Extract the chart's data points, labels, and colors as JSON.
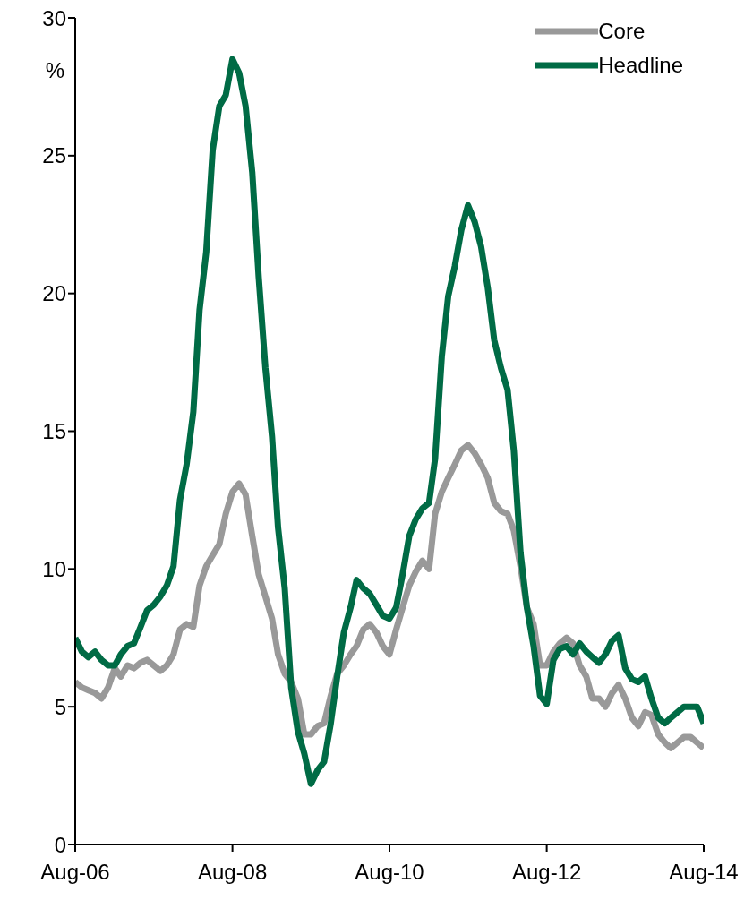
{
  "chart_data": {
    "type": "line",
    "ylabel": "%",
    "x": [
      "2006-08",
      "2006-09",
      "2006-10",
      "2006-11",
      "2006-12",
      "2007-01",
      "2007-02",
      "2007-03",
      "2007-04",
      "2007-05",
      "2007-06",
      "2007-07",
      "2007-08",
      "2007-09",
      "2007-10",
      "2007-11",
      "2007-12",
      "2008-01",
      "2008-02",
      "2008-03",
      "2008-04",
      "2008-05",
      "2008-06",
      "2008-07",
      "2008-08",
      "2008-09",
      "2008-10",
      "2008-11",
      "2008-12",
      "2009-01",
      "2009-02",
      "2009-03",
      "2009-04",
      "2009-05",
      "2009-06",
      "2009-07",
      "2009-08",
      "2009-09",
      "2009-10",
      "2009-11",
      "2009-12",
      "2010-01",
      "2010-02",
      "2010-03",
      "2010-04",
      "2010-05",
      "2010-06",
      "2010-07",
      "2010-08",
      "2010-09",
      "2010-10",
      "2010-11",
      "2010-12",
      "2011-01",
      "2011-02",
      "2011-03",
      "2011-04",
      "2011-05",
      "2011-06",
      "2011-07",
      "2011-08",
      "2011-09",
      "2011-10",
      "2011-11",
      "2011-12",
      "2012-01",
      "2012-02",
      "2012-03",
      "2012-04",
      "2012-05",
      "2012-06",
      "2012-07",
      "2012-08",
      "2012-09",
      "2012-10",
      "2012-11",
      "2012-12",
      "2013-01",
      "2013-02",
      "2013-03",
      "2013-04",
      "2013-05",
      "2013-06",
      "2013-07",
      "2013-08",
      "2013-09",
      "2013-10",
      "2013-11",
      "2013-12",
      "2014-01",
      "2014-02",
      "2014-03",
      "2014-04",
      "2014-05",
      "2014-06",
      "2014-07",
      "2014-08"
    ],
    "series": [
      {
        "name": "Core",
        "color": "#999999",
        "values": [
          5.9,
          5.7,
          5.6,
          5.5,
          5.3,
          5.7,
          6.4,
          6.1,
          6.5,
          6.4,
          6.6,
          6.7,
          6.5,
          6.3,
          6.5,
          6.9,
          7.8,
          8.0,
          7.9,
          9.4,
          10.1,
          10.5,
          10.9,
          12.0,
          12.8,
          13.1,
          12.7,
          11.2,
          9.8,
          9.0,
          8.2,
          6.9,
          6.2,
          5.9,
          5.3,
          4.0,
          4.0,
          4.3,
          4.4,
          5.4,
          6.2,
          6.5,
          6.9,
          7.2,
          7.8,
          8.0,
          7.7,
          7.2,
          6.9,
          7.8,
          8.6,
          9.4,
          9.9,
          10.3,
          10.0,
          12.0,
          12.8,
          13.3,
          13.8,
          14.3,
          14.5,
          14.2,
          13.8,
          13.3,
          12.4,
          12.1,
          12.0,
          11.4,
          10.1,
          8.6,
          8.0,
          6.5,
          6.5,
          7.0,
          7.3,
          7.5,
          7.3,
          6.5,
          6.1,
          5.3,
          5.3,
          5.0,
          5.5,
          5.8,
          5.3,
          4.6,
          4.3,
          4.8,
          4.7,
          4.0,
          3.7,
          3.5,
          3.7,
          3.9,
          3.9,
          3.7,
          3.5
        ]
      },
      {
        "name": "Headline",
        "color": "#006b45",
        "values": [
          7.5,
          7.0,
          6.8,
          7.0,
          6.7,
          6.5,
          6.5,
          6.9,
          7.2,
          7.3,
          7.9,
          8.5,
          8.7,
          9.0,
          9.4,
          10.1,
          12.5,
          13.8,
          15.7,
          19.4,
          21.5,
          25.2,
          26.8,
          27.2,
          28.5,
          28.0,
          26.8,
          24.4,
          20.6,
          17.3,
          14.8,
          11.5,
          9.3,
          5.7,
          4.1,
          3.3,
          2.2,
          2.7,
          3.0,
          4.4,
          6.1,
          7.7,
          8.6,
          9.6,
          9.3,
          9.1,
          8.7,
          8.3,
          8.2,
          8.6,
          9.8,
          11.2,
          11.8,
          12.2,
          12.4,
          14.0,
          17.7,
          19.9,
          21.0,
          22.3,
          23.2,
          22.6,
          21.7,
          20.2,
          18.3,
          17.3,
          16.5,
          14.3,
          10.6,
          8.6,
          7.2,
          5.4,
          5.1,
          6.7,
          7.1,
          7.2,
          6.9,
          7.3,
          7.0,
          6.8,
          6.6,
          6.9,
          7.4,
          7.6,
          6.4,
          6.0,
          5.9,
          6.1,
          5.3,
          4.6,
          4.4,
          4.6,
          4.8,
          5.0,
          5.0,
          5.0,
          4.4
        ]
      }
    ],
    "xlim": [
      "2006-08",
      "2014-08"
    ],
    "xticks": [
      {
        "value": "2006-08",
        "label": "Aug-06"
      },
      {
        "value": "2008-08",
        "label": "Aug-08"
      },
      {
        "value": "2010-08",
        "label": "Aug-10"
      },
      {
        "value": "2012-08",
        "label": "Aug-12"
      },
      {
        "value": "2014-08",
        "label": "Aug-14"
      }
    ],
    "ylim": [
      0,
      30
    ],
    "yticks": [
      0,
      5,
      10,
      15,
      20,
      25,
      30
    ],
    "grid": false,
    "legend": "top right",
    "marker": "none",
    "line_style": "solid"
  }
}
